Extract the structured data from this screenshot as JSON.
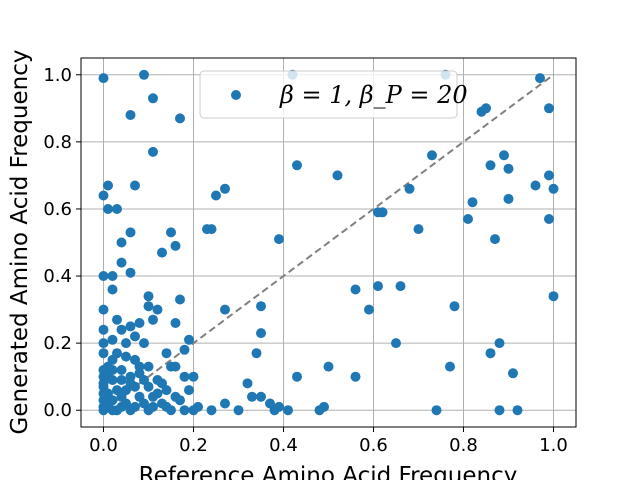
{
  "chart_data": {
    "type": "scatter",
    "xlabel": "Reference Amino Acid Frequency",
    "ylabel": "Generated Amino Acid Frequency",
    "xlim": [
      -0.05,
      1.05
    ],
    "ylim": [
      -0.05,
      1.05
    ],
    "x_ticks": [
      "0.0",
      "0.2",
      "0.4",
      "0.6",
      "0.8",
      "1.0"
    ],
    "y_ticks": [
      "0.0",
      "0.2",
      "0.4",
      "0.6",
      "0.8",
      "1.0"
    ],
    "grid": true,
    "legend_position": "top-right",
    "marker_color": "#1f77b4",
    "reference_line": {
      "from": [
        0,
        0
      ],
      "to": [
        1,
        1
      ],
      "style": "dashed",
      "color": "#808080"
    },
    "series": [
      {
        "name": "β = 1, β_P = 20",
        "points": [
          [
            0.0,
            0.99
          ],
          [
            0.09,
            1.0
          ],
          [
            0.42,
            1.0
          ],
          [
            0.76,
            1.0
          ],
          [
            0.97,
            0.99
          ],
          [
            0.11,
            0.93
          ],
          [
            0.06,
            0.88
          ],
          [
            0.17,
            0.87
          ],
          [
            0.84,
            0.89
          ],
          [
            0.85,
            0.9
          ],
          [
            0.99,
            0.9
          ],
          [
            0.11,
            0.77
          ],
          [
            0.43,
            0.73
          ],
          [
            0.73,
            0.76
          ],
          [
            0.86,
            0.73
          ],
          [
            0.89,
            0.76
          ],
          [
            0.9,
            0.72
          ],
          [
            0.52,
            0.7
          ],
          [
            0.99,
            0.7
          ],
          [
            0.96,
            0.67
          ],
          [
            1.0,
            0.66
          ],
          [
            0.01,
            0.67
          ],
          [
            0.07,
            0.67
          ],
          [
            0.0,
            0.64
          ],
          [
            0.25,
            0.64
          ],
          [
            0.27,
            0.66
          ],
          [
            0.68,
            0.66
          ],
          [
            0.82,
            0.62
          ],
          [
            0.9,
            0.63
          ],
          [
            0.01,
            0.6
          ],
          [
            0.03,
            0.6
          ],
          [
            0.61,
            0.59
          ],
          [
            0.62,
            0.59
          ],
          [
            0.81,
            0.57
          ],
          [
            0.99,
            0.57
          ],
          [
            0.23,
            0.54
          ],
          [
            0.24,
            0.54
          ],
          [
            0.7,
            0.54
          ],
          [
            0.15,
            0.53
          ],
          [
            0.06,
            0.53
          ],
          [
            0.04,
            0.5
          ],
          [
            0.16,
            0.49
          ],
          [
            0.13,
            0.47
          ],
          [
            0.87,
            0.51
          ],
          [
            0.39,
            0.51
          ],
          [
            0.0,
            0.4
          ],
          [
            0.02,
            0.4
          ],
          [
            0.04,
            0.44
          ],
          [
            0.06,
            0.41
          ],
          [
            0.02,
            0.36
          ],
          [
            0.1,
            0.34
          ],
          [
            0.56,
            0.36
          ],
          [
            0.61,
            0.37
          ],
          [
            0.66,
            0.37
          ],
          [
            0.78,
            0.31
          ],
          [
            1.0,
            0.34
          ],
          [
            0.1,
            0.31
          ],
          [
            0.12,
            0.3
          ],
          [
            0.17,
            0.33
          ],
          [
            0.35,
            0.31
          ],
          [
            0.27,
            0.3
          ],
          [
            0.59,
            0.3
          ],
          [
            0.0,
            0.3
          ],
          [
            0.03,
            0.27
          ],
          [
            0.11,
            0.27
          ],
          [
            0.04,
            0.24
          ],
          [
            0.06,
            0.25
          ],
          [
            0.08,
            0.26
          ],
          [
            0.16,
            0.26
          ],
          [
            0.35,
            0.23
          ],
          [
            0.0,
            0.24
          ],
          [
            0.0,
            0.2
          ],
          [
            0.02,
            0.21
          ],
          [
            0.05,
            0.2
          ],
          [
            0.07,
            0.22
          ],
          [
            0.09,
            0.2
          ],
          [
            0.19,
            0.21
          ],
          [
            0.65,
            0.2
          ],
          [
            0.88,
            0.2
          ],
          [
            0.0,
            0.17
          ],
          [
            0.03,
            0.17
          ],
          [
            0.05,
            0.16
          ],
          [
            0.07,
            0.15
          ],
          [
            0.1,
            0.13
          ],
          [
            0.14,
            0.17
          ],
          [
            0.18,
            0.18
          ],
          [
            0.34,
            0.17
          ],
          [
            0.86,
            0.17
          ],
          [
            0.01,
            0.13
          ],
          [
            0.04,
            0.12
          ],
          [
            0.08,
            0.11
          ],
          [
            0.15,
            0.13
          ],
          [
            0.16,
            0.13
          ],
          [
            0.5,
            0.13
          ],
          [
            0.77,
            0.13
          ],
          [
            0.91,
            0.11
          ],
          [
            0.0,
            0.1
          ],
          [
            0.02,
            0.09
          ],
          [
            0.06,
            0.08
          ],
          [
            0.12,
            0.09
          ],
          [
            0.18,
            0.1
          ],
          [
            0.2,
            0.1
          ],
          [
            0.43,
            0.1
          ],
          [
            0.56,
            0.1
          ],
          [
            0.0,
            0.07
          ],
          [
            0.03,
            0.06
          ],
          [
            0.07,
            0.07
          ],
          [
            0.1,
            0.07
          ],
          [
            0.14,
            0.06
          ],
          [
            0.19,
            0.06
          ],
          [
            0.32,
            0.08
          ],
          [
            0.01,
            0.05
          ],
          [
            0.04,
            0.04
          ],
          [
            0.08,
            0.04
          ],
          [
            0.12,
            0.05
          ],
          [
            0.16,
            0.04
          ],
          [
            0.33,
            0.04
          ],
          [
            0.35,
            0.04
          ],
          [
            0.0,
            0.03
          ],
          [
            0.02,
            0.03
          ],
          [
            0.05,
            0.02
          ],
          [
            0.09,
            0.02
          ],
          [
            0.13,
            0.02
          ],
          [
            0.17,
            0.03
          ],
          [
            0.21,
            0.01
          ],
          [
            0.27,
            0.02
          ],
          [
            0.37,
            0.02
          ],
          [
            0.49,
            0.01
          ],
          [
            0.0,
            0.01
          ],
          [
            0.03,
            0.0
          ],
          [
            0.06,
            0.0
          ],
          [
            0.1,
            0.0
          ],
          [
            0.15,
            0.0
          ],
          [
            0.18,
            0.0
          ],
          [
            0.24,
            0.0
          ],
          [
            0.3,
            0.0
          ],
          [
            0.38,
            0.0
          ],
          [
            0.41,
            0.0
          ],
          [
            0.48,
            0.0
          ],
          [
            0.74,
            0.0
          ],
          [
            0.88,
            0.0
          ],
          [
            0.92,
            0.0
          ],
          [
            0.0,
            0.0
          ],
          [
            0.02,
            0.0
          ],
          [
            0.01,
            0.02
          ],
          [
            0.04,
            0.01
          ],
          [
            0.07,
            0.01
          ],
          [
            0.11,
            0.01
          ],
          [
            0.14,
            0.01
          ],
          [
            0.2,
            0.0
          ],
          [
            0.39,
            0.01
          ],
          [
            0.0,
            0.05
          ],
          [
            0.0,
            0.08
          ],
          [
            0.0,
            0.12
          ],
          [
            0.01,
            0.1
          ],
          [
            0.02,
            0.12
          ],
          [
            0.05,
            0.06
          ],
          [
            0.06,
            0.1
          ],
          [
            0.09,
            0.09
          ],
          [
            0.11,
            0.04
          ],
          [
            0.13,
            0.08
          ],
          [
            0.04,
            0.09
          ],
          [
            0.08,
            0.13
          ],
          [
            0.02,
            0.15
          ]
        ]
      }
    ]
  }
}
